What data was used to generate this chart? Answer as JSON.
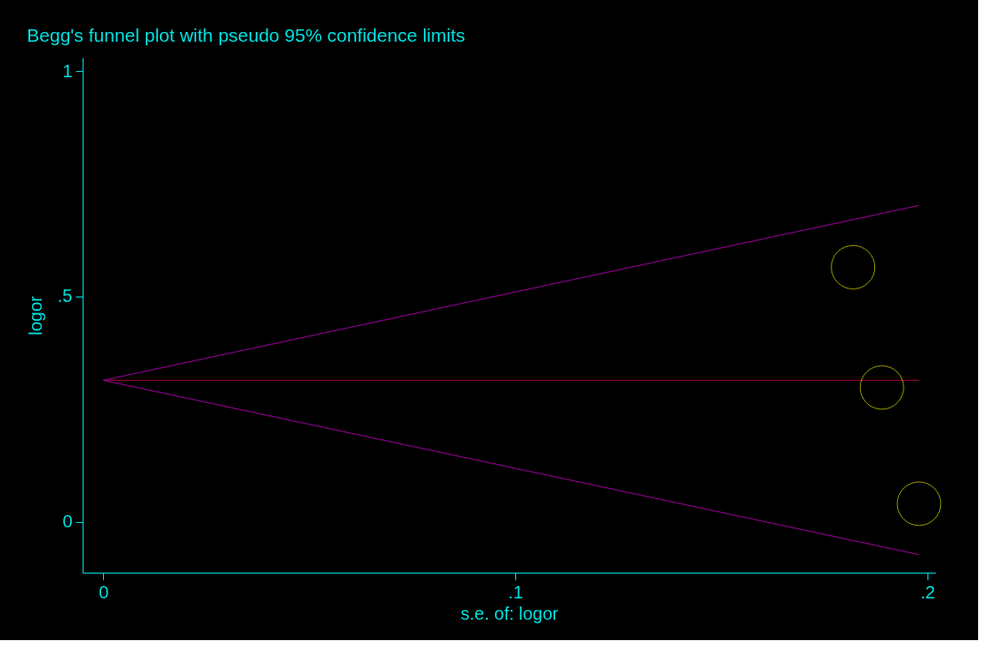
{
  "chart_data": {
    "type": "scatter",
    "title": "Begg's funnel plot with pseudo 95% confidence limits",
    "xlabel": "s.e. of: logor",
    "ylabel": "logor",
    "xlim": [
      -0.005,
      0.202
    ],
    "ylim": [
      -0.113,
      1.03
    ],
    "xticks": [
      {
        "value": 0,
        "label": "0"
      },
      {
        "value": 0.1,
        "label": ".1"
      },
      {
        "value": 0.2,
        "label": ".2"
      }
    ],
    "yticks": [
      {
        "value": 0,
        "label": "0"
      },
      {
        "value": 0.5,
        "label": ".5"
      },
      {
        "value": 1,
        "label": "1"
      }
    ],
    "grid": false,
    "series": [
      {
        "type": "line",
        "color": "#a000a0",
        "marker": "none",
        "line_style": "solid",
        "x": [
          0,
          0.198
        ],
        "values": [
          0.314,
          0.702
        ]
      },
      {
        "type": "line",
        "color": "#a0003c",
        "marker": "none",
        "line_style": "solid",
        "x": [
          0,
          0.198
        ],
        "values": [
          0.314,
          0.314
        ]
      },
      {
        "type": "line",
        "color": "#a000a0",
        "marker": "none",
        "line_style": "solid",
        "x": [
          0,
          0.198
        ],
        "values": [
          0.314,
          -0.073
        ]
      },
      {
        "color": "#e0e000",
        "marker": "circle",
        "x": [
          0.182,
          0.189,
          0.198
        ],
        "values": [
          0.565,
          0.298,
          0.04
        ]
      }
    ]
  }
}
